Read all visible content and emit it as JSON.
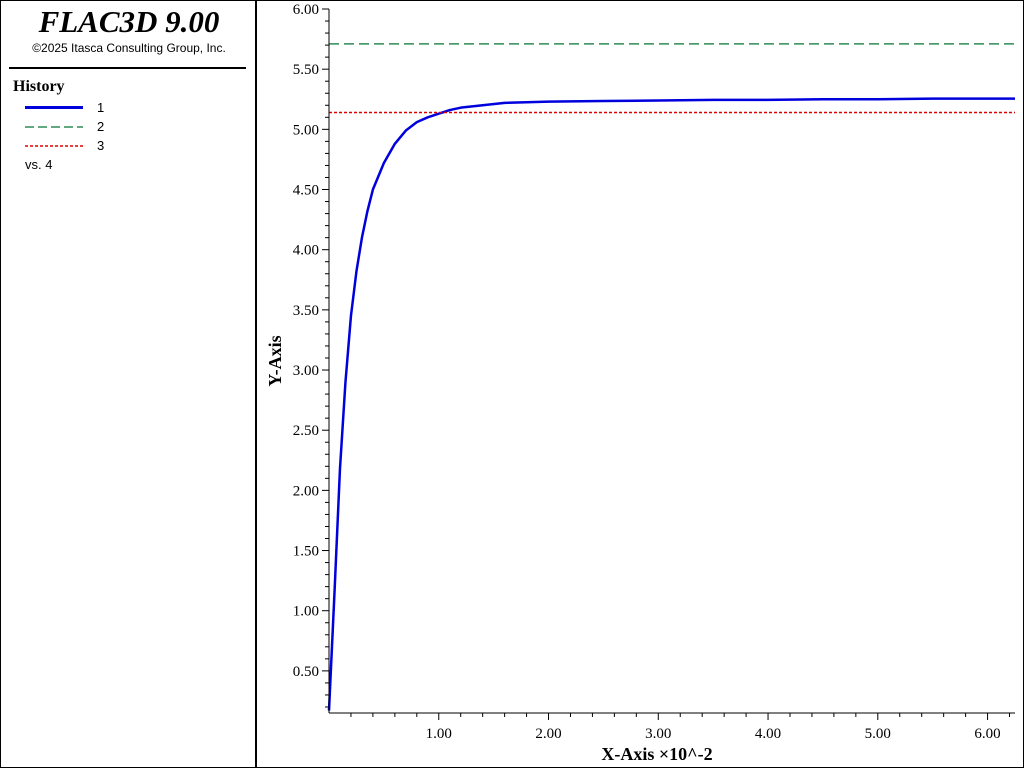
{
  "app": {
    "title": "FLAC3D 9.00",
    "copyright": "©2025 Itasca Consulting Group, Inc."
  },
  "legend": {
    "heading": "History",
    "items": [
      {
        "label": "1",
        "color": "#0000dd",
        "style": "solid"
      },
      {
        "label": "2",
        "color": "#2e8b57",
        "style": "long-dash"
      },
      {
        "label": "3",
        "color": "#dd0000",
        "style": "short-dash"
      }
    ],
    "vs_label": "vs. 4"
  },
  "chart_data": {
    "type": "line",
    "xlabel": "X-Axis ×10^-2",
    "ylabel": "Y-Axis",
    "xlim": [
      0.0,
      6.25
    ],
    "ylim": [
      0.15,
      6.0
    ],
    "x_ticks": [
      "1.00",
      "2.00",
      "3.00",
      "4.00",
      "5.00",
      "6.00"
    ],
    "y_ticks": [
      "0.50",
      "1.00",
      "1.50",
      "2.00",
      "2.50",
      "3.00",
      "3.50",
      "4.00",
      "4.50",
      "5.00",
      "5.50",
      "6.00"
    ],
    "grid": false,
    "series": [
      {
        "name": "1",
        "color": "#0000dd",
        "x": [
          0.0,
          0.05,
          0.1,
          0.15,
          0.2,
          0.25,
          0.3,
          0.35,
          0.4,
          0.5,
          0.6,
          0.7,
          0.8,
          0.9,
          1.0,
          1.1,
          1.2,
          1.4,
          1.6,
          1.8,
          2.0,
          2.5,
          3.0,
          3.5,
          4.0,
          4.5,
          5.0,
          5.5,
          6.0,
          6.25
        ],
        "y": [
          0.17,
          1.15,
          2.18,
          2.9,
          3.45,
          3.82,
          4.1,
          4.32,
          4.5,
          4.72,
          4.88,
          4.99,
          5.06,
          5.1,
          5.13,
          5.16,
          5.18,
          5.2,
          5.22,
          5.225,
          5.23,
          5.235,
          5.24,
          5.245,
          5.245,
          5.25,
          5.25,
          5.255,
          5.255,
          5.255
        ]
      },
      {
        "name": "2",
        "color": "#2e8b57",
        "x": [
          0.0,
          6.25
        ],
        "y": [
          5.71,
          5.71
        ]
      },
      {
        "name": "3",
        "color": "#dd0000",
        "x": [
          0.0,
          6.25
        ],
        "y": [
          5.14,
          5.14
        ]
      }
    ]
  }
}
